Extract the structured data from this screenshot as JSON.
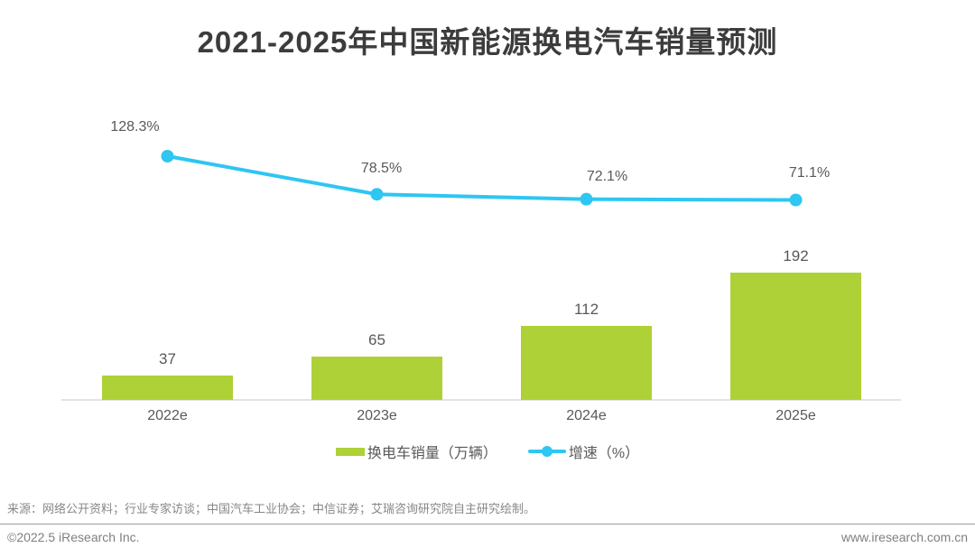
{
  "chart_data": {
    "type": "bar+line",
    "title": "2021-2025年中国新能源换电汽车销量预测",
    "categories": [
      "2022e",
      "2023e",
      "2024e",
      "2025e"
    ],
    "series": [
      {
        "name": "换电车销量（万辆）",
        "type": "bar",
        "values": [
          37,
          65,
          112,
          192
        ],
        "labels": [
          "37",
          "65",
          "112",
          "192"
        ],
        "color": "#aed137"
      },
      {
        "name": "增速（%）",
        "type": "line",
        "values": [
          128.3,
          78.5,
          72.1,
          71.1
        ],
        "labels": [
          "128.3%",
          "78.5%",
          "72.1%",
          "71.1%"
        ],
        "color": "#2ec6f2"
      }
    ],
    "ylim_bars": [
      0,
      200
    ],
    "grid": false,
    "legend_position": "bottom"
  },
  "colors": {
    "bar_green": "#aed137",
    "line_cyan": "#2ec6f2",
    "title_text": "#3c3c3c",
    "label_text": "#595959",
    "footer_text": "#7f7f7f",
    "axis_line": "#e3e3e3"
  },
  "footer": {
    "source": "来源：网络公开资料；行业专家访谈；中国汽车工业协会；中信证券；艾瑞咨询研究院自主研究绘制。",
    "copyright": "©2022.5 iResearch Inc.",
    "website": "www.iresearch.com.cn"
  }
}
